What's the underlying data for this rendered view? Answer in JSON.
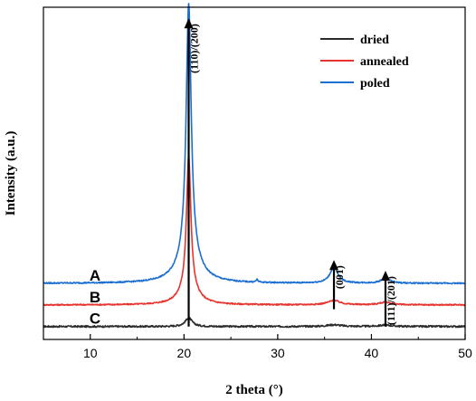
{
  "chart_data": {
    "type": "line",
    "xlabel": "2 theta (°)",
    "ylabel": "Intensity (a.u.)",
    "xlim": [
      5,
      50
    ],
    "xticks": [
      10,
      20,
      30,
      40,
      50
    ],
    "legend_position": "top-right",
    "series": [
      {
        "name": "dried",
        "trace_label": "C",
        "color": "#2b2b2b",
        "baseline": 0.0,
        "noise": 0.004,
        "peaks": [
          {
            "x": 20.5,
            "height": 0.04,
            "width": 0.45
          },
          {
            "x": 36.0,
            "height": 0.008,
            "width": 0.9
          },
          {
            "x": 41.5,
            "height": 0.006,
            "width": 0.9
          }
        ]
      },
      {
        "name": "annealed",
        "trace_label": "B",
        "color": "#e8342e",
        "baseline": 0.1,
        "noise": 0.003,
        "peaks": [
          {
            "x": 20.5,
            "height": 0.62,
            "width": 0.28
          },
          {
            "x": 20.5,
            "height": 0.07,
            "width": 1.1
          },
          {
            "x": 36.0,
            "height": 0.02,
            "width": 0.8
          },
          {
            "x": 41.5,
            "height": 0.012,
            "width": 0.8
          }
        ]
      },
      {
        "name": "poled",
        "trace_label": "A",
        "color": "#1a6fd1",
        "baseline": 0.2,
        "noise": 0.003,
        "peaks": [
          {
            "x": 20.5,
            "height": 1.18,
            "width": 0.32
          },
          {
            "x": 20.5,
            "height": 0.12,
            "width": 1.3
          },
          {
            "x": 27.8,
            "height": 0.012,
            "width": 0.12
          },
          {
            "x": 36.0,
            "height": 0.075,
            "width": 0.5
          },
          {
            "x": 41.5,
            "height": 0.025,
            "width": 0.5
          }
        ]
      }
    ],
    "annotations": [
      {
        "label": "(110)/(200)",
        "x": 20.5,
        "arrow_from": 0.0,
        "arrow_to": 1.42
      },
      {
        "label": "(001)",
        "x": 36.0,
        "arrow_from": 0.08,
        "arrow_to": 0.3
      },
      {
        "label": "(111)/(201)",
        "x": 41.5,
        "arrow_from": 0.0,
        "arrow_to": 0.25
      }
    ]
  }
}
